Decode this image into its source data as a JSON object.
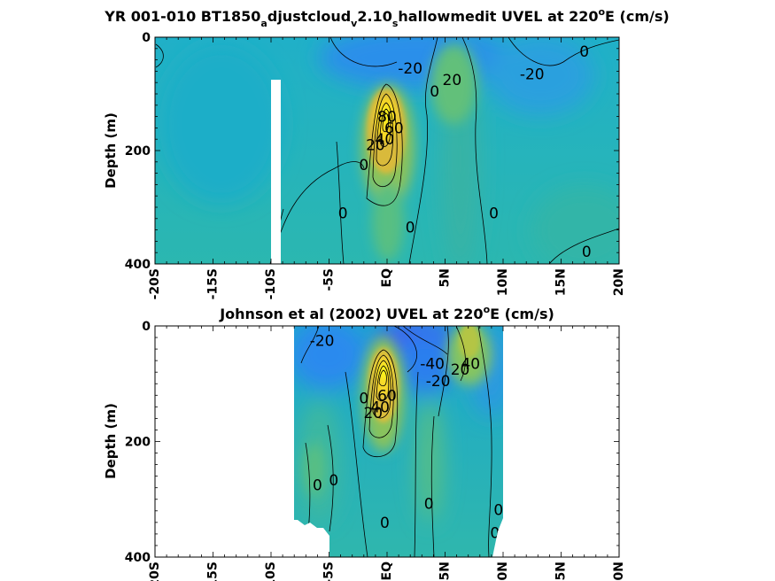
{
  "chart_data": [
    {
      "type": "heatmap",
      "title": {
        "p1": "YR 001-010 BT1850",
        "s1": "a",
        "p2": "djustcloud",
        "s2": "v",
        "p3": "2.10",
        "s3": "s",
        "p4": "hallowmedit UVEL at 220",
        "sup": "o",
        "p5": "E (cm/s)"
      },
      "ylabel": "Depth (m)",
      "xlim": [
        -20,
        20
      ],
      "ylim": [
        0,
        400
      ],
      "y_reversed": true,
      "x_ticks": [
        -20,
        -15,
        -10,
        -5,
        0,
        5,
        10,
        15,
        20
      ],
      "x_tick_labels": [
        "-20S",
        "-15S",
        "-10S",
        "-5S",
        "EQ",
        "5N",
        "10N",
        "15N",
        "20N"
      ],
      "y_ticks": [
        0,
        200,
        400
      ],
      "y_tick_labels": [
        "0",
        "200",
        "400"
      ],
      "colorscale": "parula",
      "contour_interval": 20,
      "contour_labels": [
        {
          "text": "0",
          "lon": 17.0,
          "depth": 25
        },
        {
          "text": "-20",
          "lon": 2.0,
          "depth": 55
        },
        {
          "text": "20",
          "lon": 5.6,
          "depth": 75
        },
        {
          "text": "-20",
          "lon": 12.5,
          "depth": 65
        },
        {
          "text": "0",
          "lon": 4.1,
          "depth": 95
        },
        {
          "text": "0",
          "lon": -2.0,
          "depth": 225
        },
        {
          "text": "0",
          "lon": -3.8,
          "depth": 310
        },
        {
          "text": "0",
          "lon": 2.0,
          "depth": 335
        },
        {
          "text": "0",
          "lon": 9.2,
          "depth": 310
        },
        {
          "text": "0",
          "lon": 17.2,
          "depth": 378
        },
        {
          "text": "20",
          "lon": -1.0,
          "depth": 190
        },
        {
          "text": "40",
          "lon": -0.2,
          "depth": 180
        },
        {
          "text": "60",
          "lon": 0.6,
          "depth": 160
        },
        {
          "text": "80",
          "lon": 0.0,
          "depth": 140
        }
      ],
      "missing_strip": {
        "lon": [
          -10.3,
          -9.4
        ],
        "depth": [
          80,
          400
        ]
      }
    },
    {
      "type": "heatmap",
      "title": {
        "p1": "Johnson et al (2002) UVEL at 220",
        "sup": "o",
        "p2": "E (cm/s)"
      },
      "ylabel": "Depth (m)",
      "xlim": [
        -20,
        20
      ],
      "ylim": [
        0,
        400
      ],
      "y_reversed": true,
      "x_ticks": [
        -20,
        -15,
        -10,
        -5,
        0,
        5,
        10,
        15,
        20
      ],
      "x_tick_labels": [
        "-20S",
        "-15S",
        "-10S",
        "-5S",
        "EQ",
        "5N",
        "10N",
        "15N",
        "20N"
      ],
      "y_ticks": [
        0,
        200,
        400
      ],
      "y_tick_labels": [
        "0",
        "200",
        "400"
      ],
      "colorscale": "parula",
      "contour_interval": 20,
      "data_extent_lon": [
        -8,
        10
      ],
      "contour_labels": [
        {
          "text": "-20",
          "lon": -5.6,
          "depth": 25
        },
        {
          "text": "-40",
          "lon": 3.9,
          "depth": 65
        },
        {
          "text": "20",
          "lon": 6.3,
          "depth": 75
        },
        {
          "text": "40",
          "lon": 7.2,
          "depth": 65
        },
        {
          "text": "-20",
          "lon": 4.4,
          "depth": 95
        },
        {
          "text": "0",
          "lon": -2.0,
          "depth": 125
        },
        {
          "text": "0",
          "lon": -6.0,
          "depth": 275
        },
        {
          "text": "0",
          "lon": -4.6,
          "depth": 267
        },
        {
          "text": "0",
          "lon": -0.2,
          "depth": 340
        },
        {
          "text": "0",
          "lon": 3.6,
          "depth": 307
        },
        {
          "text": "0",
          "lon": 9.6,
          "depth": 318
        },
        {
          "text": "0",
          "lon": 9.3,
          "depth": 358
        },
        {
          "text": "20",
          "lon": -1.2,
          "depth": 150
        },
        {
          "text": "40",
          "lon": -0.6,
          "depth": 140
        },
        {
          "text": "60",
          "lon": 0.0,
          "depth": 120
        }
      ]
    }
  ]
}
